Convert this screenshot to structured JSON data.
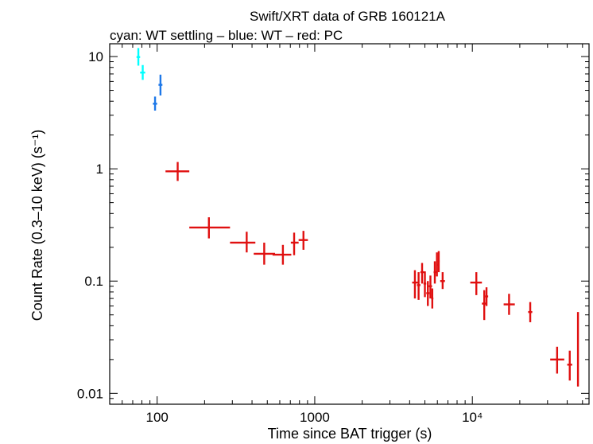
{
  "chart_data": {
    "type": "scatter",
    "title": "Swift/XRT data of GRB 160121A",
    "subtitle": "cyan: WT settling – blue: WT – red: PC",
    "xlabel": "Time since BAT trigger (s)",
    "ylabel": "Count Rate (0.3–10 keV) (s⁻¹)",
    "x_scale": "log",
    "y_scale": "log",
    "xlim": [
      50,
      55000
    ],
    "ylim": [
      0.008,
      13
    ],
    "x_ticks": [
      {
        "value": 100,
        "label": "100"
      },
      {
        "value": 1000,
        "label": "1000"
      },
      {
        "value": 10000,
        "label": "10⁴"
      }
    ],
    "y_ticks": [
      {
        "value": 0.01,
        "label": "0.01"
      },
      {
        "value": 0.1,
        "label": "0.1"
      },
      {
        "value": 1,
        "label": "1"
      },
      {
        "value": 10,
        "label": "10"
      }
    ],
    "grid": false,
    "series": [
      {
        "color": "#00ffff",
        "points": [
          {
            "x": 76,
            "y": 9.9,
            "xlo": 74,
            "xhi": 78,
            "ylo": 8.3,
            "yhi": 11.9
          },
          {
            "x": 81,
            "y": 7.2,
            "xlo": 78,
            "xhi": 84,
            "ylo": 6.2,
            "yhi": 8.4
          }
        ]
      },
      {
        "color": "#1e78e8",
        "points": [
          {
            "x": 97,
            "y": 3.8,
            "xlo": 94,
            "xhi": 100,
            "ylo": 3.3,
            "yhi": 4.4
          },
          {
            "x": 105,
            "y": 5.6,
            "xlo": 102,
            "xhi": 108,
            "ylo": 4.5,
            "yhi": 6.9
          }
        ]
      },
      {
        "color": "#e01010",
        "points": [
          {
            "x": 135,
            "y": 0.95,
            "xlo": 113,
            "xhi": 160,
            "ylo": 0.78,
            "yhi": 1.15
          },
          {
            "x": 213,
            "y": 0.3,
            "xlo": 160,
            "xhi": 290,
            "ylo": 0.24,
            "yhi": 0.37
          },
          {
            "x": 370,
            "y": 0.22,
            "xlo": 290,
            "xhi": 420,
            "ylo": 0.18,
            "yhi": 0.275
          },
          {
            "x": 478,
            "y": 0.175,
            "xlo": 410,
            "xhi": 560,
            "ylo": 0.14,
            "yhi": 0.22
          },
          {
            "x": 628,
            "y": 0.172,
            "xlo": 540,
            "xhi": 710,
            "ylo": 0.14,
            "yhi": 0.21
          },
          {
            "x": 740,
            "y": 0.22,
            "xlo": 705,
            "xhi": 790,
            "ylo": 0.17,
            "yhi": 0.27
          },
          {
            "x": 848,
            "y": 0.232,
            "xlo": 790,
            "xhi": 905,
            "ylo": 0.19,
            "yhi": 0.28
          },
          {
            "x": 4320,
            "y": 0.097,
            "xlo": 4150,
            "xhi": 4500,
            "ylo": 0.07,
            "yhi": 0.125
          },
          {
            "x": 4560,
            "y": 0.092,
            "xlo": 4450,
            "xhi": 4680,
            "ylo": 0.068,
            "yhi": 0.12
          },
          {
            "x": 4800,
            "y": 0.12,
            "xlo": 4680,
            "xhi": 4950,
            "ylo": 0.095,
            "yhi": 0.145
          },
          {
            "x": 5000,
            "y": 0.095,
            "xlo": 4900,
            "xhi": 5100,
            "ylo": 0.072,
            "yhi": 0.122
          },
          {
            "x": 5220,
            "y": 0.078,
            "xlo": 5100,
            "xhi": 5350,
            "ylo": 0.06,
            "yhi": 0.1
          },
          {
            "x": 5420,
            "y": 0.09,
            "xlo": 5300,
            "xhi": 5550,
            "ylo": 0.07,
            "yhi": 0.112
          },
          {
            "x": 5570,
            "y": 0.07,
            "xlo": 5480,
            "xhi": 5660,
            "ylo": 0.057,
            "yhi": 0.086
          },
          {
            "x": 5780,
            "y": 0.12,
            "xlo": 5680,
            "xhi": 5880,
            "ylo": 0.095,
            "yhi": 0.15
          },
          {
            "x": 5960,
            "y": 0.14,
            "xlo": 5880,
            "xhi": 6050,
            "ylo": 0.11,
            "yhi": 0.18
          },
          {
            "x": 6120,
            "y": 0.15,
            "xlo": 6040,
            "xhi": 6200,
            "ylo": 0.12,
            "yhi": 0.185
          },
          {
            "x": 6480,
            "y": 0.1,
            "xlo": 6250,
            "xhi": 6700,
            "ylo": 0.085,
            "yhi": 0.12
          },
          {
            "x": 10600,
            "y": 0.097,
            "xlo": 9700,
            "xhi": 11500,
            "ylo": 0.075,
            "yhi": 0.12
          },
          {
            "x": 11900,
            "y": 0.063,
            "xlo": 11500,
            "xhi": 12300,
            "ylo": 0.045,
            "yhi": 0.083
          },
          {
            "x": 12300,
            "y": 0.073,
            "xlo": 12050,
            "xhi": 12600,
            "ylo": 0.06,
            "yhi": 0.088
          },
          {
            "x": 17100,
            "y": 0.062,
            "xlo": 15800,
            "xhi": 18600,
            "ylo": 0.05,
            "yhi": 0.077
          },
          {
            "x": 23300,
            "y": 0.053,
            "xlo": 22600,
            "xhi": 24000,
            "ylo": 0.043,
            "yhi": 0.065
          },
          {
            "x": 34500,
            "y": 0.02,
            "xlo": 31200,
            "xhi": 38300,
            "ylo": 0.015,
            "yhi": 0.026
          },
          {
            "x": 41500,
            "y": 0.018,
            "xlo": 40000,
            "xhi": 43000,
            "ylo": 0.013,
            "yhi": 0.024
          },
          {
            "x": 46800,
            "y": 0.025,
            "xlo": 46700,
            "xhi": 46900,
            "ylo": 0.0115,
            "yhi": 0.053
          }
        ]
      }
    ]
  }
}
